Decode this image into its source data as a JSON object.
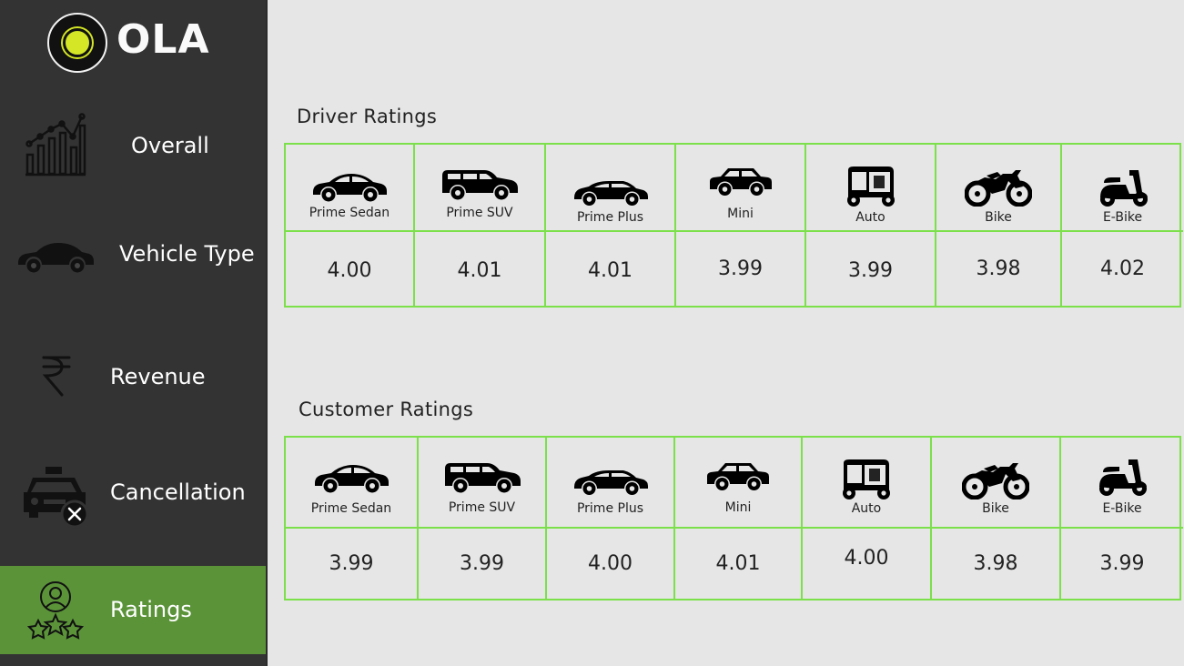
{
  "brand": {
    "name": "OLA",
    "accent": "#d4e625"
  },
  "sidebar": {
    "items": [
      {
        "label": "Overall",
        "icon": "growth-chart-icon",
        "active": false
      },
      {
        "label": "Vehicle Type",
        "icon": "car-icon",
        "active": false
      },
      {
        "label": "Revenue",
        "icon": "rupee-icon",
        "active": false
      },
      {
        "label": "Cancellation",
        "icon": "taxi-cancel-icon",
        "active": false
      },
      {
        "label": "Ratings",
        "icon": "user-stars-icon",
        "active": true
      }
    ],
    "active_color": "#5b9339"
  },
  "driver_ratings": {
    "title": "Driver Ratings",
    "vehicles": [
      {
        "name": "Prime Sedan",
        "icon": "sedan-icon",
        "rating": "4.00"
      },
      {
        "name": "Prime SUV",
        "icon": "suv-icon",
        "rating": "4.01"
      },
      {
        "name": "Prime Plus",
        "icon": "prime-plus-car-icon",
        "rating": "4.01"
      },
      {
        "name": "Mini",
        "icon": "hatchback-icon",
        "rating": "3.99"
      },
      {
        "name": "Auto",
        "icon": "auto-rickshaw-icon",
        "rating": "3.99"
      },
      {
        "name": "Bike",
        "icon": "motorbike-icon",
        "rating": "3.98"
      },
      {
        "name": "E-Bike",
        "icon": "scooter-icon",
        "rating": "4.02"
      }
    ]
  },
  "customer_ratings": {
    "title": "Customer Ratings",
    "vehicles": [
      {
        "name": "Prime Sedan",
        "icon": "sedan-icon",
        "rating": "3.99"
      },
      {
        "name": "Prime SUV",
        "icon": "suv-icon",
        "rating": "3.99"
      },
      {
        "name": "Prime Plus",
        "icon": "prime-plus-car-icon",
        "rating": "4.00"
      },
      {
        "name": "Mini",
        "icon": "hatchback-icon",
        "rating": "4.01"
      },
      {
        "name": "Auto",
        "icon": "auto-rickshaw-icon",
        "rating": "4.00"
      },
      {
        "name": "Bike",
        "icon": "motorbike-icon",
        "rating": "3.98"
      },
      {
        "name": "E-Bike",
        "icon": "scooter-icon",
        "rating": "3.99"
      }
    ]
  },
  "table_border_color": "#7be04a"
}
